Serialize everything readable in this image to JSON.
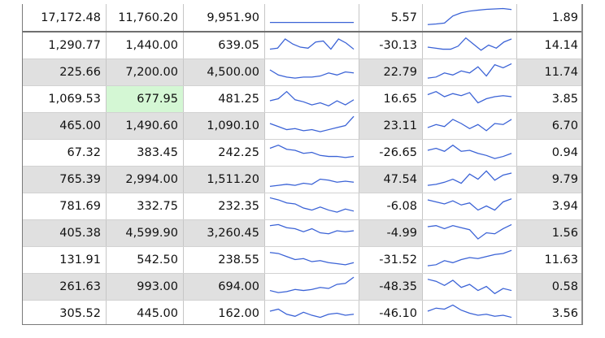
{
  "colors": {
    "sparkline": "#3a62d6",
    "alt_row": "#e0e0e0",
    "selected_cell": "#d4f7d4"
  },
  "summary": {
    "c0": "17,172.48",
    "c1": "11,760.20",
    "c2": "9,951.90",
    "c4": "5.57",
    "c6": "1.89",
    "spark_a": [
      0.5,
      0.5,
      0.5,
      0.5,
      0.5,
      0.5,
      0.5,
      0.5,
      0.5,
      0.5
    ],
    "spark_b": [
      0.15,
      0.18,
      0.22,
      0.55,
      0.7,
      0.78,
      0.82,
      0.86,
      0.88,
      0.9,
      0.85
    ]
  },
  "rows": [
    {
      "c0": "1,290.77",
      "c1": "1,440.00",
      "c2": "639.05",
      "c4": "-30.13",
      "c6": "14.14",
      "spark_a": [
        0.3,
        0.35,
        0.8,
        0.55,
        0.4,
        0.35,
        0.65,
        0.7,
        0.3,
        0.8,
        0.6,
        0.3
      ],
      "spark_b": [
        0.4,
        0.35,
        0.3,
        0.3,
        0.45,
        0.85,
        0.55,
        0.25,
        0.5,
        0.35,
        0.65,
        0.8
      ]
    },
    {
      "c0": "225.66",
      "c1": "7,200.00",
      "c2": "4,500.00",
      "c4": "22.79",
      "c6": "11.74",
      "spark_a": [
        0.6,
        0.35,
        0.25,
        0.2,
        0.25,
        0.25,
        0.3,
        0.45,
        0.35,
        0.5,
        0.45
      ],
      "spark_b": [
        0.2,
        0.25,
        0.45,
        0.35,
        0.55,
        0.45,
        0.75,
        0.3,
        0.85,
        0.7,
        0.9
      ]
    },
    {
      "c0": "1,069.53",
      "c1": "677.95",
      "c2": "481.25",
      "c4": "16.65",
      "c6": "3.85",
      "spark_a": [
        0.4,
        0.5,
        0.85,
        0.45,
        0.35,
        0.2,
        0.3,
        0.15,
        0.4,
        0.2,
        0.45
      ],
      "spark_b": [
        0.7,
        0.85,
        0.6,
        0.75,
        0.65,
        0.8,
        0.3,
        0.5,
        0.6,
        0.65,
        0.6
      ]
    },
    {
      "c0": "465.00",
      "c1": "1,490.60",
      "c2": "1,090.10",
      "c4": "23.11",
      "c6": "6.70",
      "spark_a": [
        0.6,
        0.45,
        0.3,
        0.35,
        0.25,
        0.3,
        0.2,
        0.3,
        0.4,
        0.5,
        0.95
      ],
      "spark_b": [
        0.4,
        0.55,
        0.45,
        0.8,
        0.6,
        0.35,
        0.55,
        0.25,
        0.6,
        0.55,
        0.8
      ]
    },
    {
      "c0": "67.32",
      "c1": "383.45",
      "c2": "242.25",
      "c4": "-26.65",
      "c6": "0.94",
      "spark_a": [
        0.7,
        0.85,
        0.65,
        0.6,
        0.45,
        0.5,
        0.35,
        0.3,
        0.3,
        0.25,
        0.3
      ],
      "spark_b": [
        0.6,
        0.7,
        0.55,
        0.85,
        0.55,
        0.6,
        0.45,
        0.35,
        0.2,
        0.3,
        0.45
      ]
    },
    {
      "c0": "765.39",
      "c1": "2,994.00",
      "c2": "1,511.20",
      "c4": "47.54",
      "c6": "9.79",
      "spark_a": [
        0.15,
        0.2,
        0.25,
        0.2,
        0.3,
        0.25,
        0.5,
        0.45,
        0.35,
        0.4,
        0.35
      ],
      "spark_b": [
        0.2,
        0.25,
        0.35,
        0.5,
        0.3,
        0.75,
        0.5,
        0.9,
        0.45,
        0.7,
        0.8
      ]
    },
    {
      "c0": "781.69",
      "c1": "332.75",
      "c2": "232.35",
      "c4": "-6.08",
      "c6": "3.94",
      "spark_a": [
        0.9,
        0.8,
        0.65,
        0.6,
        0.4,
        0.3,
        0.45,
        0.3,
        0.2,
        0.35,
        0.25
      ],
      "spark_b": [
        0.8,
        0.7,
        0.6,
        0.75,
        0.55,
        0.65,
        0.3,
        0.5,
        0.3,
        0.7,
        0.85
      ]
    },
    {
      "c0": "405.38",
      "c1": "4,599.90",
      "c2": "3,260.45",
      "c4": "-4.99",
      "c6": "1.56",
      "spark_a": [
        0.85,
        0.9,
        0.75,
        0.7,
        0.55,
        0.7,
        0.5,
        0.45,
        0.6,
        0.55,
        0.6
      ],
      "spark_b": [
        0.8,
        0.85,
        0.7,
        0.85,
        0.75,
        0.65,
        0.2,
        0.5,
        0.45,
        0.7,
        0.9
      ]
    },
    {
      "c0": "131.91",
      "c1": "542.50",
      "c2": "238.55",
      "c4": "-31.52",
      "c6": "11.63",
      "spark_a": [
        0.85,
        0.8,
        0.65,
        0.5,
        0.55,
        0.4,
        0.45,
        0.35,
        0.3,
        0.25,
        0.35
      ],
      "spark_b": [
        0.2,
        0.25,
        0.45,
        0.35,
        0.5,
        0.6,
        0.55,
        0.65,
        0.75,
        0.8,
        0.95
      ]
    },
    {
      "c0": "261.63",
      "c1": "993.00",
      "c2": "694.00",
      "c4": "-48.35",
      "c6": "0.58",
      "spark_a": [
        0.3,
        0.2,
        0.25,
        0.35,
        0.3,
        0.35,
        0.45,
        0.4,
        0.6,
        0.65,
        0.95
      ],
      "spark_b": [
        0.85,
        0.75,
        0.55,
        0.8,
        0.45,
        0.6,
        0.3,
        0.5,
        0.15,
        0.4,
        0.3
      ]
    },
    {
      "c0": "305.52",
      "c1": "445.00",
      "c2": "162.00",
      "c4": "-46.10",
      "c6": "3.56",
      "spark_a": [
        0.6,
        0.7,
        0.45,
        0.35,
        0.55,
        0.4,
        0.3,
        0.45,
        0.5,
        0.4,
        0.45
      ],
      "spark_b": [
        0.6,
        0.75,
        0.7,
        0.9,
        0.65,
        0.5,
        0.4,
        0.45,
        0.35,
        0.4,
        0.3
      ]
    }
  ],
  "selected": {
    "row": 2,
    "col": "c1"
  }
}
